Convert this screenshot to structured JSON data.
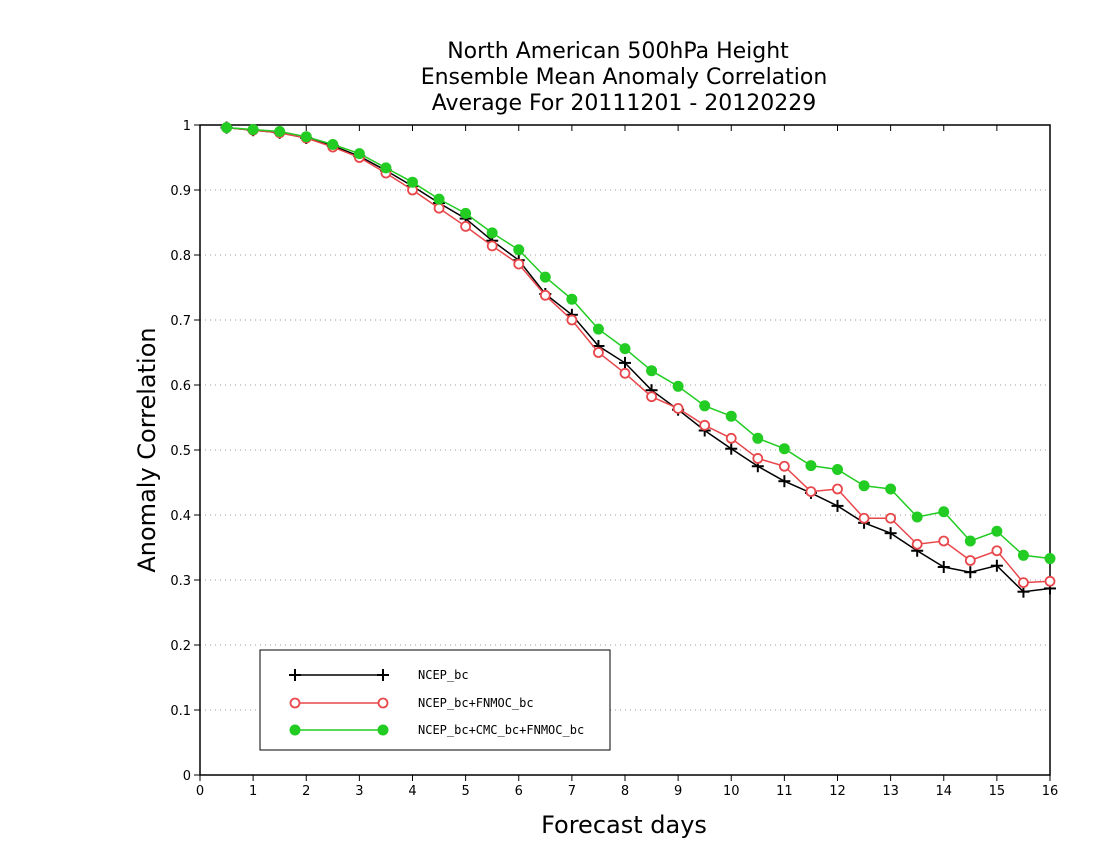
{
  "chart_data": {
    "type": "line",
    "title_lines": [
      "North American 500hPa Height",
      "Ensemble Mean Anomaly Correlation",
      "Average For 20111201 - 20120229"
    ],
    "xlabel": "Forecast days",
    "ylabel": "Anomaly Correlation",
    "xlim": [
      0,
      16
    ],
    "ylim": [
      0,
      1
    ],
    "x_ticks": [
      "0",
      "1",
      "2",
      "3",
      "4",
      "5",
      "6",
      "7",
      "8",
      "9",
      "10",
      "11",
      "12",
      "13",
      "14",
      "15",
      "16"
    ],
    "y_ticks": [
      "0",
      "0.1",
      "0.2",
      "0.3",
      "0.4",
      "0.5",
      "0.6",
      "0.7",
      "0.8",
      "0.9",
      "1"
    ],
    "grid": true,
    "legend_position": "bottom-left",
    "x": [
      0.5,
      1,
      1.5,
      2,
      2.5,
      3,
      3.5,
      4,
      4.5,
      5,
      5.5,
      6,
      6.5,
      7,
      7.5,
      8,
      8.5,
      9,
      9.5,
      10,
      10.5,
      11,
      11.5,
      12,
      12.5,
      13,
      13.5,
      14,
      14.5,
      15,
      15.5,
      16
    ],
    "series": [
      {
        "name": "NCEP_bc",
        "color": "#000000",
        "marker": "plus",
        "values": [
          0.996,
          0.992,
          0.988,
          0.98,
          0.968,
          0.952,
          0.93,
          0.906,
          0.88,
          0.856,
          0.822,
          0.792,
          0.74,
          0.708,
          0.66,
          0.634,
          0.592,
          0.562,
          0.53,
          0.502,
          0.475,
          0.452,
          0.434,
          0.414,
          0.388,
          0.372,
          0.345,
          0.32,
          0.312,
          0.322,
          0.282,
          0.287
        ]
      },
      {
        "name": "NCEP_bc+FNMOC_bc",
        "color": "#e8474b",
        "marker": "open-circle",
        "values": [
          0.996,
          0.992,
          0.988,
          0.98,
          0.966,
          0.95,
          0.926,
          0.9,
          0.872,
          0.844,
          0.814,
          0.786,
          0.738,
          0.7,
          0.65,
          0.618,
          0.582,
          0.564,
          0.538,
          0.518,
          0.487,
          0.475,
          0.436,
          0.44,
          0.395,
          0.395,
          0.355,
          0.36,
          0.33,
          0.345,
          0.296,
          0.298
        ]
      },
      {
        "name": "NCEP_bc+CMC_bc+FNMOC_bc",
        "color": "#22cc22",
        "marker": "filled-circle",
        "values": [
          0.996,
          0.993,
          0.99,
          0.982,
          0.97,
          0.956,
          0.934,
          0.912,
          0.886,
          0.864,
          0.834,
          0.808,
          0.766,
          0.732,
          0.686,
          0.656,
          0.622,
          0.598,
          0.568,
          0.552,
          0.518,
          0.502,
          0.476,
          0.47,
          0.445,
          0.44,
          0.397,
          0.405,
          0.36,
          0.375,
          0.338,
          0.333
        ]
      }
    ]
  }
}
